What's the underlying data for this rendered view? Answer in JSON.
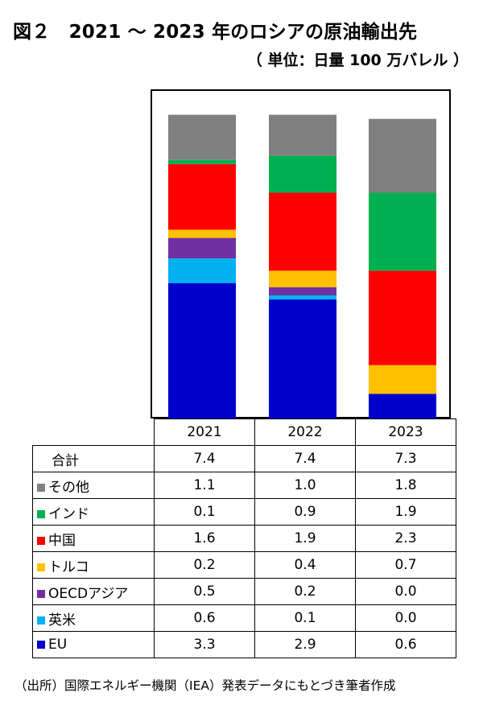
{
  "title": "図２　2021 ～ 2023 年のロシアの原油輸出先",
  "unit": "（ 単位：日量 100 万バレル ）",
  "source": "（出所）国際エネルギー機関（IEA）発表データにもとづき筆者作成",
  "chart_data": {
    "type": "bar",
    "stacked": true,
    "title": "2021 ～ 2023 年のロシアの原油輸出先",
    "ylabel": "日量 100 万バレル",
    "categories": [
      "2021",
      "2022",
      "2023"
    ],
    "totals_label": "合計",
    "totals": [
      "7.4",
      "7.4",
      "7.3"
    ],
    "series": [
      {
        "name": "EU",
        "color": "#0000cc",
        "values": [
          3.3,
          2.9,
          0.6
        ],
        "labels": [
          "3.3",
          "2.9",
          "0.6"
        ]
      },
      {
        "name": "英米",
        "color": "#00b0f0",
        "values": [
          0.6,
          0.1,
          0.0
        ],
        "labels": [
          "0.6",
          "0.1",
          "0.0"
        ]
      },
      {
        "name": "OECDアジア",
        "color": "#7030a0",
        "values": [
          0.5,
          0.2,
          0.0
        ],
        "labels": [
          "0.5",
          "0.2",
          "0.0"
        ]
      },
      {
        "name": "トルコ",
        "color": "#ffc000",
        "values": [
          0.2,
          0.4,
          0.7
        ],
        "labels": [
          "0.2",
          "0.4",
          "0.7"
        ]
      },
      {
        "name": "中国",
        "color": "#ff0000",
        "values": [
          1.6,
          1.9,
          2.3
        ],
        "labels": [
          "1.6",
          "1.9",
          "2.3"
        ]
      },
      {
        "name": "インド",
        "color": "#00b050",
        "values": [
          0.1,
          0.9,
          1.9
        ],
        "labels": [
          "0.1",
          "0.9",
          "1.9"
        ]
      },
      {
        "name": "その他",
        "color": "#808080",
        "values": [
          1.1,
          1.0,
          1.8
        ],
        "labels": [
          "1.1",
          "1.0",
          "1.8"
        ]
      }
    ],
    "ylim": [
      0,
      7.6
    ],
    "grid": false
  }
}
